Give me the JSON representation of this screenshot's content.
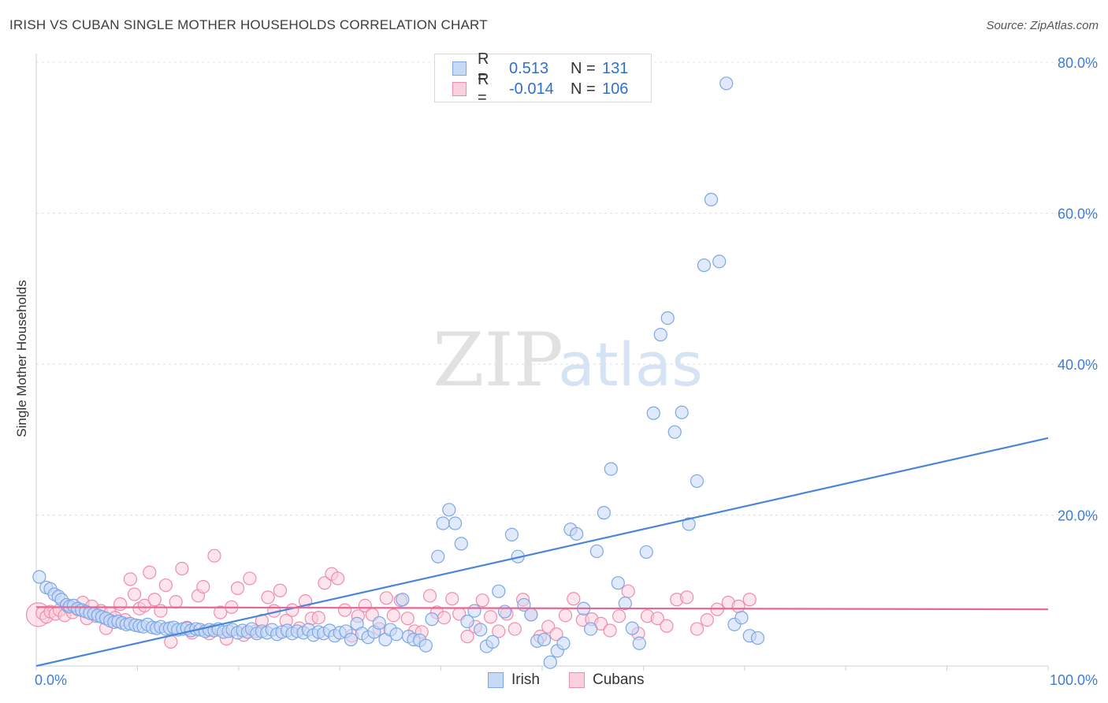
{
  "title": "IRISH VS CUBAN SINGLE MOTHER HOUSEHOLDS CORRELATION CHART",
  "source": "Source: ZipAtlas.com",
  "watermark": {
    "zip": "ZIP",
    "atlas": "atlas"
  },
  "legend": [
    {
      "r_label": "R =",
      "r_value": "0.513",
      "n_label": "N =",
      "n_value": "131",
      "color": "#7ba7e6",
      "fill": "#c6d9f5"
    },
    {
      "r_label": "R =",
      "r_value": "-0.014",
      "n_label": "N =",
      "n_value": "106",
      "color": "#f08cab",
      "fill": "#f9d0dc"
    }
  ],
  "bottom_legend": [
    {
      "label": "Irish",
      "color": "#7ba7e6",
      "fill": "#c6d9f5"
    },
    {
      "label": "Cubans",
      "color": "#f08cab",
      "fill": "#f9d0dc"
    }
  ],
  "chart_data": {
    "type": "scatter",
    "title": "IRISH VS CUBAN SINGLE MOTHER HOUSEHOLDS CORRELATION CHART",
    "xlabel": "",
    "ylabel": "Single Mother Households",
    "xlim": [
      0,
      100
    ],
    "ylim": [
      0,
      80
    ],
    "x_tick_labels": [
      "0.0%",
      "100.0%"
    ],
    "y_ticks": [
      20,
      40,
      60,
      80
    ],
    "y_tick_labels": [
      "20.0%",
      "40.0%",
      "60.0%",
      "80.0%"
    ],
    "grid": true,
    "series": [
      {
        "name": "Irish",
        "color": "#4a86d8",
        "fill": "#c6d9f5",
        "stroke": "#7ba7e6",
        "trend": {
          "x": [
            0,
            100
          ],
          "y": [
            0.0,
            30.2
          ]
        },
        "x": [
          0.3,
          1.0,
          1.4,
          1.8,
          2.2,
          2.5,
          3.0,
          3.3,
          3.7,
          4.1,
          4.5,
          4.9,
          5.3,
          5.7,
          6.1,
          6.5,
          6.9,
          7.3,
          7.7,
          8.1,
          8.5,
          8.9,
          9.3,
          9.8,
          10.2,
          10.6,
          11.0,
          11.5,
          11.9,
          12.3,
          12.8,
          13.2,
          13.6,
          14.0,
          14.5,
          14.9,
          15.3,
          15.8,
          16.2,
          16.7,
          17.1,
          17.6,
          18.0,
          18.5,
          19.0,
          19.4,
          19.9,
          20.4,
          20.9,
          21.3,
          21.8,
          22.3,
          22.8,
          23.3,
          23.8,
          24.3,
          24.8,
          25.3,
          25.8,
          26.4,
          26.9,
          27.4,
          27.9,
          28.4,
          29.0,
          29.5,
          30.0,
          30.6,
          31.1,
          31.7,
          32.2,
          32.8,
          33.4,
          33.9,
          34.5,
          35.0,
          35.6,
          36.2,
          36.8,
          37.3,
          37.9,
          38.5,
          39.1,
          39.7,
          40.2,
          40.8,
          41.4,
          42.0,
          42.6,
          43.3,
          43.9,
          44.5,
          45.1,
          45.7,
          46.3,
          47.0,
          47.6,
          48.2,
          48.9,
          49.5,
          50.2,
          50.8,
          51.5,
          52.1,
          52.8,
          53.4,
          54.1,
          54.8,
          55.4,
          56.1,
          56.8,
          57.5,
          58.2,
          58.9,
          59.6,
          60.3,
          61.0,
          61.7,
          62.4,
          63.1,
          63.8,
          64.5,
          65.3,
          66.0,
          66.7,
          67.5,
          68.2,
          69.0,
          69.7,
          70.5,
          71.3
        ],
        "y": [
          11.8,
          10.4,
          10.2,
          9.5,
          9.2,
          8.8,
          8.1,
          7.9,
          8.0,
          7.6,
          7.4,
          7.2,
          7.0,
          6.9,
          6.7,
          6.5,
          6.3,
          6.0,
          5.8,
          5.9,
          5.7,
          5.5,
          5.6,
          5.4,
          5.3,
          5.2,
          5.5,
          5.1,
          5.0,
          5.2,
          4.9,
          5.0,
          5.1,
          4.8,
          4.9,
          5.0,
          4.7,
          4.9,
          4.8,
          4.6,
          4.8,
          4.7,
          4.9,
          4.5,
          4.6,
          4.8,
          4.4,
          4.7,
          4.5,
          4.9,
          4.3,
          4.6,
          4.4,
          4.8,
          4.2,
          4.5,
          4.7,
          4.3,
          4.6,
          4.4,
          4.8,
          4.1,
          4.5,
          4.3,
          4.7,
          4.0,
          4.4,
          4.6,
          3.5,
          5.6,
          4.3,
          3.8,
          4.5,
          5.7,
          3.5,
          4.8,
          4.2,
          8.8,
          3.9,
          3.5,
          3.4,
          2.7,
          6.2,
          14.5,
          18.9,
          20.7,
          18.9,
          16.2,
          5.9,
          7.3,
          4.8,
          2.6,
          3.2,
          9.9,
          7.2,
          17.4,
          14.5,
          8.1,
          6.8,
          3.3,
          3.5,
          0.5,
          2.0,
          3.0,
          18.1,
          17.5,
          7.6,
          4.9,
          15.2,
          20.3,
          26.1,
          11.0,
          8.3,
          5.0,
          3.0,
          15.1,
          33.5,
          43.9,
          46.1,
          31.0,
          33.6,
          18.8,
          24.5,
          53.1,
          61.8,
          53.6,
          77.2,
          5.5,
          6.4,
          4.0,
          3.7
        ]
      },
      {
        "name": "Cubans",
        "color": "#e8668f",
        "fill": "#f9d0dc",
        "stroke": "#f08cab",
        "trend": {
          "x": [
            0,
            100
          ],
          "y": [
            7.8,
            7.5
          ]
        },
        "x": [
          0.2,
          0.6,
          1.0,
          1.4,
          1.9,
          2.3,
          2.8,
          3.2,
          3.6,
          4.1,
          4.6,
          5.0,
          5.5,
          5.9,
          6.4,
          6.9,
          7.3,
          7.8,
          8.3,
          8.8,
          9.3,
          9.7,
          10.2,
          10.7,
          11.2,
          11.7,
          12.3,
          12.8,
          13.3,
          13.8,
          14.4,
          14.9,
          15.4,
          16.0,
          16.5,
          17.1,
          17.6,
          18.2,
          18.8,
          19.3,
          19.9,
          20.5,
          21.1,
          21.7,
          22.3,
          22.9,
          23.5,
          24.1,
          24.7,
          25.3,
          26.0,
          26.6,
          27.2,
          27.9,
          28.5,
          29.2,
          29.8,
          30.5,
          31.2,
          31.8,
          32.5,
          33.2,
          33.9,
          34.6,
          35.3,
          36.0,
          36.7,
          37.4,
          38.1,
          38.9,
          39.6,
          40.3,
          41.1,
          41.8,
          42.6,
          43.4,
          44.1,
          44.9,
          45.7,
          46.5,
          47.3,
          48.1,
          48.9,
          49.8,
          50.6,
          51.4,
          52.3,
          53.1,
          54.0,
          54.9,
          55.8,
          56.7,
          57.6,
          58.5,
          59.5,
          60.4,
          61.4,
          62.3,
          63.3,
          64.3,
          65.3,
          66.3,
          67.3,
          68.4,
          69.4,
          70.5
        ],
        "y": [
          6.8,
          7.0,
          6.5,
          7.2,
          6.9,
          7.4,
          6.7,
          7.8,
          7.1,
          7.5,
          8.4,
          6.3,
          7.9,
          6.6,
          7.3,
          5.0,
          7.0,
          6.4,
          8.2,
          6.1,
          11.5,
          9.5,
          7.6,
          8.0,
          12.4,
          8.8,
          7.3,
          10.7,
          3.2,
          8.5,
          12.9,
          5.1,
          4.4,
          9.3,
          10.5,
          4.3,
          14.6,
          7.1,
          3.6,
          7.8,
          10.3,
          4.1,
          11.6,
          4.6,
          6.0,
          9.1,
          7.3,
          10.0,
          6.0,
          7.4,
          5.0,
          8.6,
          6.3,
          6.4,
          11.0,
          12.2,
          11.6,
          7.4,
          4.0,
          6.6,
          8.0,
          6.8,
          4.9,
          9.0,
          6.7,
          8.7,
          6.3,
          4.6,
          4.5,
          9.3,
          7.1,
          6.4,
          8.9,
          6.9,
          3.9,
          5.2,
          8.7,
          6.5,
          4.6,
          6.9,
          4.9,
          8.8,
          6.8,
          3.9,
          5.2,
          4.2,
          6.7,
          8.9,
          6.1,
          6.2,
          5.6,
          4.7,
          6.6,
          9.9,
          4.3,
          6.6,
          6.3,
          5.3,
          8.8,
          9.1,
          4.9,
          6.1,
          7.5,
          8.4,
          7.9,
          8.8
        ]
      }
    ]
  }
}
